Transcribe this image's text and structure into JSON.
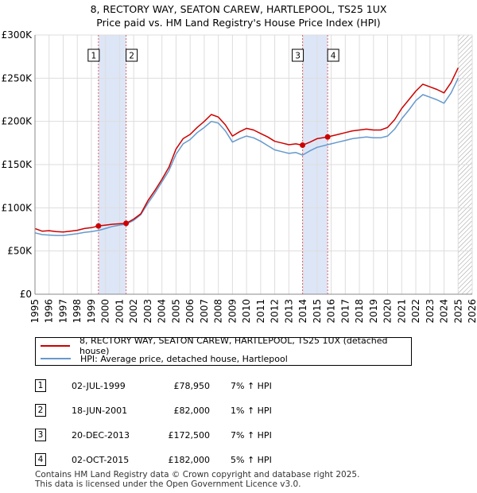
{
  "header": {
    "title": "8, RECTORY WAY, SEATON CAREW, HARTLEPOOL, TS25 1UX",
    "subtitle": "Price paid vs. HM Land Registry's House Price Index (HPI)"
  },
  "chart_data": {
    "type": "line",
    "xlim": [
      1995,
      2026
    ],
    "ylim": [
      0,
      300000
    ],
    "x_ticks": [
      "1995",
      "1996",
      "1997",
      "1998",
      "1999",
      "2000",
      "2001",
      "2002",
      "2003",
      "2004",
      "2005",
      "2006",
      "2007",
      "2008",
      "2009",
      "2010",
      "2011",
      "2012",
      "2013",
      "2014",
      "2015",
      "2016",
      "2017",
      "2018",
      "2019",
      "2020",
      "2021",
      "2022",
      "2023",
      "2024",
      "2025",
      "2026"
    ],
    "y_ticks": [
      {
        "value": 0,
        "label": "£0"
      },
      {
        "value": 50000,
        "label": "£50K"
      },
      {
        "value": 100000,
        "label": "£100K"
      },
      {
        "value": 150000,
        "label": "£150K"
      },
      {
        "value": 200000,
        "label": "£200K"
      },
      {
        "value": 250000,
        "label": "£250K"
      },
      {
        "value": 300000,
        "label": "£300K"
      }
    ],
    "grid": true,
    "colors": {
      "property": "#cc0000",
      "hpi": "#6699cc",
      "shade": "#dde6f7",
      "vline": "#e06060",
      "hatch": "#999999"
    },
    "series": [
      {
        "name": "8, RECTORY WAY, SEATON CAREW, HARTLEPOOL, TS25 1UX (detached house)",
        "points": [
          [
            1995.0,
            76000
          ],
          [
            1995.5,
            73000
          ],
          [
            1996.0,
            73500
          ],
          [
            1996.5,
            72500
          ],
          [
            1997.0,
            72000
          ],
          [
            1997.5,
            73000
          ],
          [
            1998.0,
            74000
          ],
          [
            1998.5,
            76000
          ],
          [
            1999.0,
            77000
          ],
          [
            1999.5,
            78950
          ],
          [
            2000.0,
            80000
          ],
          [
            2000.5,
            81000
          ],
          [
            2001.0,
            81500
          ],
          [
            2001.46,
            82000
          ],
          [
            2002.0,
            87000
          ],
          [
            2002.5,
            93000
          ],
          [
            2003.0,
            108000
          ],
          [
            2003.5,
            120000
          ],
          [
            2004.0,
            133000
          ],
          [
            2004.5,
            147000
          ],
          [
            2005.0,
            168000
          ],
          [
            2005.5,
            180000
          ],
          [
            2006.0,
            185000
          ],
          [
            2006.5,
            193000
          ],
          [
            2007.0,
            200000
          ],
          [
            2007.5,
            208000
          ],
          [
            2008.0,
            205000
          ],
          [
            2008.5,
            196000
          ],
          [
            2009.0,
            183000
          ],
          [
            2009.5,
            188000
          ],
          [
            2010.0,
            192000
          ],
          [
            2010.5,
            190000
          ],
          [
            2011.0,
            186000
          ],
          [
            2011.5,
            182000
          ],
          [
            2012.0,
            177000
          ],
          [
            2012.5,
            175000
          ],
          [
            2013.0,
            173000
          ],
          [
            2013.5,
            174000
          ],
          [
            2013.97,
            172500
          ],
          [
            2014.5,
            176000
          ],
          [
            2015.0,
            180000
          ],
          [
            2015.75,
            182000
          ],
          [
            2016.0,
            183000
          ],
          [
            2016.5,
            185000
          ],
          [
            2017.0,
            187000
          ],
          [
            2017.5,
            189000
          ],
          [
            2018.0,
            190000
          ],
          [
            2018.5,
            191000
          ],
          [
            2019.0,
            190000
          ],
          [
            2019.5,
            190000
          ],
          [
            2020.0,
            193000
          ],
          [
            2020.5,
            202000
          ],
          [
            2021.0,
            215000
          ],
          [
            2021.5,
            225000
          ],
          [
            2022.0,
            235000
          ],
          [
            2022.5,
            243000
          ],
          [
            2023.0,
            240000
          ],
          [
            2023.5,
            237000
          ],
          [
            2024.0,
            233000
          ],
          [
            2024.5,
            245000
          ],
          [
            2025.0,
            262000
          ]
        ]
      },
      {
        "name": "HPI: Average price, detached house, Hartlepool",
        "points": [
          [
            1995.0,
            71000
          ],
          [
            1995.5,
            69000
          ],
          [
            1996.0,
            68500
          ],
          [
            1996.5,
            68000
          ],
          [
            1997.0,
            68000
          ],
          [
            1997.5,
            69000
          ],
          [
            1998.0,
            70000
          ],
          [
            1998.5,
            71500
          ],
          [
            1999.0,
            72500
          ],
          [
            1999.5,
            73800
          ],
          [
            2000.0,
            76000
          ],
          [
            2000.5,
            78500
          ],
          [
            2001.0,
            80000
          ],
          [
            2001.46,
            81000
          ],
          [
            2002.0,
            85500
          ],
          [
            2002.5,
            92000
          ],
          [
            2003.0,
            105000
          ],
          [
            2003.5,
            117000
          ],
          [
            2004.0,
            130000
          ],
          [
            2004.5,
            143000
          ],
          [
            2005.0,
            162000
          ],
          [
            2005.5,
            174000
          ],
          [
            2006.0,
            179000
          ],
          [
            2006.5,
            187000
          ],
          [
            2007.0,
            193000
          ],
          [
            2007.5,
            200000
          ],
          [
            2008.0,
            198000
          ],
          [
            2008.5,
            189000
          ],
          [
            2009.0,
            176000
          ],
          [
            2009.5,
            180000
          ],
          [
            2010.0,
            183000
          ],
          [
            2010.5,
            181000
          ],
          [
            2011.0,
            177000
          ],
          [
            2011.5,
            172000
          ],
          [
            2012.0,
            167000
          ],
          [
            2012.5,
            165000
          ],
          [
            2013.0,
            163000
          ],
          [
            2013.5,
            164000
          ],
          [
            2013.97,
            161000
          ],
          [
            2014.5,
            166000
          ],
          [
            2015.0,
            170000
          ],
          [
            2015.75,
            173000
          ],
          [
            2016.0,
            174000
          ],
          [
            2016.5,
            176000
          ],
          [
            2017.0,
            178000
          ],
          [
            2017.5,
            180000
          ],
          [
            2018.0,
            181000
          ],
          [
            2018.5,
            182000
          ],
          [
            2019.0,
            181000
          ],
          [
            2019.5,
            181000
          ],
          [
            2020.0,
            183000
          ],
          [
            2020.5,
            191000
          ],
          [
            2021.0,
            203000
          ],
          [
            2021.5,
            213000
          ],
          [
            2022.0,
            224000
          ],
          [
            2022.5,
            231000
          ],
          [
            2023.0,
            228000
          ],
          [
            2023.5,
            225000
          ],
          [
            2024.0,
            221000
          ],
          [
            2024.5,
            233000
          ],
          [
            2025.0,
            250000
          ]
        ]
      }
    ],
    "sale_markers": [
      {
        "label": "1",
        "x": 1999.5,
        "y": 78950
      },
      {
        "label": "2",
        "x": 2001.46,
        "y": 82000
      },
      {
        "label": "3",
        "x": 2013.97,
        "y": 172500
      },
      {
        "label": "4",
        "x": 2015.75,
        "y": 182000
      }
    ],
    "shaded_periods": [
      [
        1999.5,
        2001.46
      ],
      [
        2013.97,
        2015.75
      ]
    ],
    "future_hatch_from": 2025.0
  },
  "legend": {
    "property_label": "8, RECTORY WAY, SEATON CAREW, HARTLEPOOL, TS25 1UX (detached house)",
    "hpi_label": "HPI: Average price, detached house, Hartlepool"
  },
  "sales": [
    {
      "num": "1",
      "date": "02-JUL-1999",
      "price": "£78,950",
      "hpi": "7% ↑ HPI"
    },
    {
      "num": "2",
      "date": "18-JUN-2001",
      "price": "£82,000",
      "hpi": "1% ↑ HPI"
    },
    {
      "num": "3",
      "date": "20-DEC-2013",
      "price": "£172,500",
      "hpi": "7% ↑ HPI"
    },
    {
      "num": "4",
      "date": "02-OCT-2015",
      "price": "£182,000",
      "hpi": "5% ↑ HPI"
    }
  ],
  "footer": {
    "line1": "Contains HM Land Registry data © Crown copyright and database right 2025.",
    "line2": "This data is licensed under the Open Government Licence v3.0."
  }
}
